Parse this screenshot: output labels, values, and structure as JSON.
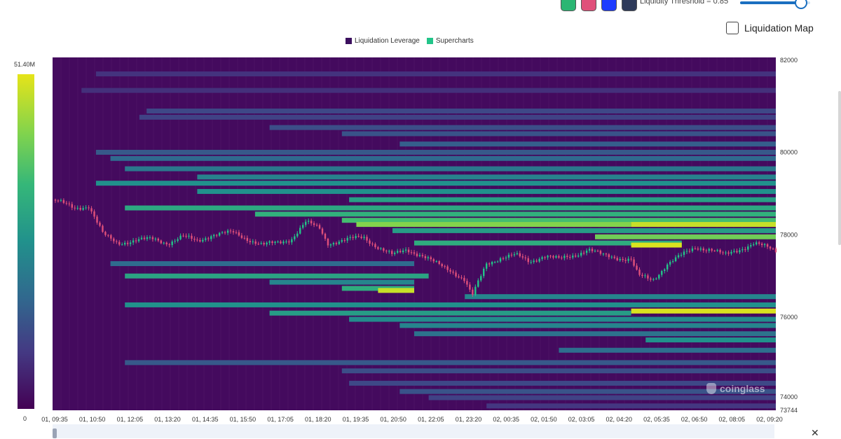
{
  "toolbar": {
    "theme_swatches": [
      {
        "name": "green-theme",
        "color": "#2bb673"
      },
      {
        "name": "pink-theme",
        "color": "#e0507a"
      },
      {
        "name": "blue-theme",
        "color": "#1e3cff"
      },
      {
        "name": "dark-theme",
        "color": "#2e3a5a"
      }
    ],
    "threshold_label": "Liquidity Threshold = 0.85",
    "threshold_value": 0.85,
    "liquidation_map_label": "Liquidation Map",
    "liquidation_map_checked": false
  },
  "legend": [
    {
      "label": "Liquidation Leverage",
      "color": "#3b0f5e"
    },
    {
      "label": "Supercharts",
      "color": "#22c589"
    }
  ],
  "colorbar": {
    "max_label": "51.40M",
    "min_label": "0"
  },
  "watermark": "coinglass",
  "chart_data": {
    "type": "heatmap",
    "title": "",
    "xlabel": "",
    "ylabel": "",
    "x_ticks": [
      "01, 09:35",
      "01, 10:50",
      "01, 12:05",
      "01, 13:20",
      "01, 14:35",
      "01, 15:50",
      "01, 17:05",
      "01, 18:20",
      "01, 19:35",
      "01, 20:50",
      "01, 22:05",
      "01, 23:20",
      "02, 00:35",
      "02, 01:50",
      "02, 03:05",
      "02, 04:20",
      "02, 05:35",
      "02, 06:50",
      "02, 08:05",
      "02, 09:20"
    ],
    "y_ticks": [
      "82000",
      "80000",
      "78000",
      "76000",
      "74000",
      "73744"
    ],
    "y_tick_values": [
      82000,
      80000,
      78000,
      76000,
      74000,
      73744
    ],
    "ylim": [
      73744,
      82300
    ],
    "colorscale": [
      "#440154",
      "#443983",
      "#31688e",
      "#21918c",
      "#35b779",
      "#7fd34e",
      "#e6e419"
    ],
    "colorbar_range": [
      0,
      51.4
    ],
    "colorbar_unit": "M",
    "background_color": "#440a5e",
    "liquidation_bands": [
      {
        "price": 81900,
        "from": 0.06,
        "to": 1.0,
        "level": 0.15
      },
      {
        "price": 81500,
        "from": 0.04,
        "to": 1.0,
        "level": 0.14
      },
      {
        "price": 81000,
        "from": 0.13,
        "to": 1.0,
        "level": 0.22
      },
      {
        "price": 80850,
        "from": 0.12,
        "to": 1.0,
        "level": 0.2
      },
      {
        "price": 80600,
        "from": 0.3,
        "to": 1.0,
        "level": 0.24
      },
      {
        "price": 80450,
        "from": 0.4,
        "to": 1.0,
        "level": 0.26
      },
      {
        "price": 80200,
        "from": 0.48,
        "to": 1.0,
        "level": 0.3
      },
      {
        "price": 80000,
        "from": 0.06,
        "to": 1.0,
        "level": 0.28
      },
      {
        "price": 79850,
        "from": 0.08,
        "to": 1.0,
        "level": 0.34
      },
      {
        "price": 79600,
        "from": 0.1,
        "to": 1.0,
        "level": 0.4
      },
      {
        "price": 79400,
        "from": 0.2,
        "to": 1.0,
        "level": 0.44
      },
      {
        "price": 79250,
        "from": 0.06,
        "to": 1.0,
        "level": 0.5
      },
      {
        "price": 79050,
        "from": 0.2,
        "to": 1.0,
        "level": 0.5
      },
      {
        "price": 78850,
        "from": 0.41,
        "to": 1.0,
        "level": 0.56
      },
      {
        "price": 78650,
        "from": 0.1,
        "to": 1.0,
        "level": 0.6
      },
      {
        "price": 78500,
        "from": 0.28,
        "to": 1.0,
        "level": 0.64
      },
      {
        "price": 78350,
        "from": 0.4,
        "to": 1.0,
        "level": 0.7
      },
      {
        "price": 78250,
        "from": 0.42,
        "to": 0.8,
        "level": 0.84
      },
      {
        "price": 78250,
        "from": 0.8,
        "to": 1.0,
        "level": 0.95
      },
      {
        "price": 78100,
        "from": 0.47,
        "to": 1.0,
        "level": 0.55
      },
      {
        "price": 77950,
        "from": 0.75,
        "to": 1.0,
        "level": 0.8
      },
      {
        "price": 77800,
        "from": 0.5,
        "to": 0.87,
        "level": 0.62
      },
      {
        "price": 77750,
        "from": 0.8,
        "to": 0.87,
        "level": 0.98
      },
      {
        "price": 77300,
        "from": 0.08,
        "to": 0.5,
        "level": 0.35
      },
      {
        "price": 77000,
        "from": 0.1,
        "to": 0.52,
        "level": 0.58
      },
      {
        "price": 76850,
        "from": 0.3,
        "to": 0.5,
        "level": 0.45
      },
      {
        "price": 76700,
        "from": 0.4,
        "to": 0.5,
        "level": 0.62
      },
      {
        "price": 76650,
        "from": 0.45,
        "to": 0.5,
        "level": 0.95
      },
      {
        "price": 76500,
        "from": 0.57,
        "to": 1.0,
        "level": 0.45
      },
      {
        "price": 76300,
        "from": 0.1,
        "to": 1.0,
        "level": 0.5
      },
      {
        "price": 76150,
        "from": 0.8,
        "to": 1.0,
        "level": 0.98
      },
      {
        "price": 76100,
        "from": 0.3,
        "to": 0.8,
        "level": 0.55
      },
      {
        "price": 75950,
        "from": 0.41,
        "to": 1.0,
        "level": 0.48
      },
      {
        "price": 75800,
        "from": 0.48,
        "to": 1.0,
        "level": 0.45
      },
      {
        "price": 75600,
        "from": 0.5,
        "to": 1.0,
        "level": 0.38
      },
      {
        "price": 75450,
        "from": 0.82,
        "to": 1.0,
        "level": 0.5
      },
      {
        "price": 75200,
        "from": 0.7,
        "to": 1.0,
        "level": 0.36
      },
      {
        "price": 74900,
        "from": 0.1,
        "to": 1.0,
        "level": 0.28
      },
      {
        "price": 74700,
        "from": 0.4,
        "to": 1.0,
        "level": 0.24
      },
      {
        "price": 74400,
        "from": 0.41,
        "to": 1.0,
        "level": 0.22
      },
      {
        "price": 74200,
        "from": 0.48,
        "to": 1.0,
        "level": 0.26
      },
      {
        "price": 74050,
        "from": 0.52,
        "to": 1.0,
        "level": 0.2
      },
      {
        "price": 73850,
        "from": 0.6,
        "to": 1.0,
        "level": 0.16
      }
    ],
    "price_series": {
      "name": "Supercharts",
      "up_color": "#22c589",
      "down_color": "#e0507a",
      "points": [
        [
          0.0,
          78850
        ],
        [
          0.03,
          78650
        ],
        [
          0.05,
          78700
        ],
        [
          0.07,
          78000
        ],
        [
          0.09,
          77800
        ],
        [
          0.11,
          77850
        ],
        [
          0.14,
          77900
        ],
        [
          0.16,
          77800
        ],
        [
          0.18,
          77950
        ],
        [
          0.2,
          77850
        ],
        [
          0.22,
          78000
        ],
        [
          0.25,
          78050
        ],
        [
          0.27,
          77900
        ],
        [
          0.29,
          77750
        ],
        [
          0.31,
          77800
        ],
        [
          0.33,
          77900
        ],
        [
          0.35,
          78300
        ],
        [
          0.37,
          78150
        ],
        [
          0.38,
          77800
        ],
        [
          0.4,
          77850
        ],
        [
          0.43,
          77950
        ],
        [
          0.45,
          77700
        ],
        [
          0.47,
          77500
        ],
        [
          0.49,
          77650
        ],
        [
          0.51,
          77500
        ],
        [
          0.53,
          77300
        ],
        [
          0.55,
          77150
        ],
        [
          0.57,
          76900
        ],
        [
          0.58,
          76500
        ],
        [
          0.6,
          77300
        ],
        [
          0.62,
          77450
        ],
        [
          0.64,
          77500
        ],
        [
          0.66,
          77350
        ],
        [
          0.68,
          77500
        ],
        [
          0.7,
          77400
        ],
        [
          0.72,
          77500
        ],
        [
          0.74,
          77650
        ],
        [
          0.76,
          77500
        ],
        [
          0.78,
          77450
        ],
        [
          0.8,
          77400
        ],
        [
          0.81,
          77000
        ],
        [
          0.83,
          76900
        ],
        [
          0.85,
          77300
        ],
        [
          0.87,
          77500
        ],
        [
          0.89,
          77700
        ],
        [
          0.91,
          77650
        ],
        [
          0.93,
          77500
        ],
        [
          0.95,
          77650
        ],
        [
          0.97,
          77800
        ],
        [
          1.0,
          77600
        ]
      ]
    }
  }
}
